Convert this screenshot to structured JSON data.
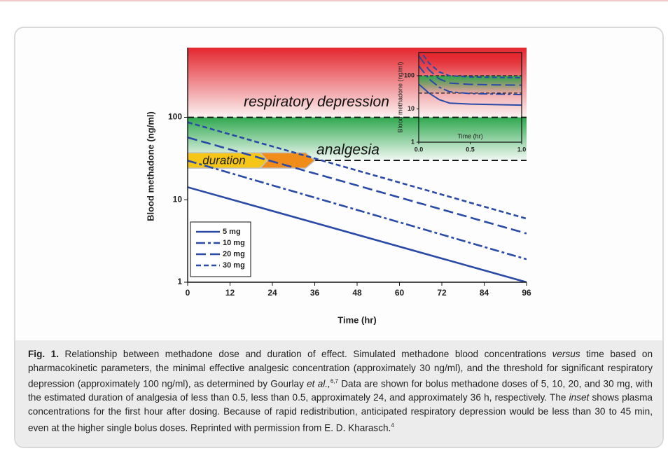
{
  "chart_data": [
    {
      "type": "line",
      "x": [
        0,
        96
      ],
      "series": [
        {
          "name": "5 mg",
          "color": "#2b4aa6",
          "dash": "solid",
          "values": [
            14.2,
            1
          ]
        },
        {
          "name": "10 mg",
          "color": "#2b4aa6",
          "dash": "dashdot",
          "values": [
            29.8,
            1.9
          ]
        },
        {
          "name": "20 mg",
          "color": "#2b4aa6",
          "dash": "dashed",
          "values": [
            57,
            3.9
          ]
        },
        {
          "name": "30 mg",
          "color": "#2b4aa6",
          "dash": "dotted",
          "values": [
            87,
            5.9
          ]
        }
      ],
      "xlim": [
        0,
        96
      ],
      "xticks": [
        0,
        12,
        24,
        36,
        48,
        60,
        72,
        84,
        96
      ],
      "ylim": [
        1,
        700
      ],
      "yticks": [
        1,
        10,
        100
      ],
      "log_y": true,
      "xlabel": "Time (hr)",
      "ylabel": "Blood methadone (ng/ml)",
      "zones": [
        {
          "name": "respiratory depression",
          "min": 100,
          "color": "#e3262e"
        },
        {
          "name": "analgesia",
          "min": 30,
          "color": "#2fa84f"
        }
      ],
      "arrows": [
        {
          "label": "duration",
          "from": 0,
          "to": 23,
          "color": "#f5c518"
        },
        {
          "from": 20.6,
          "to": 36,
          "color": "#f08c1a"
        }
      ],
      "legend": "lower left"
    },
    {
      "type": "line",
      "x": [
        0,
        0.1,
        0.2,
        0.3,
        0.5,
        0.75,
        1.0
      ],
      "series": [
        {
          "color": "#2b4aa6",
          "dash": "solid",
          "values": [
            56,
            30,
            19,
            15,
            14,
            13.5,
            13
          ]
        },
        {
          "color": "#2b4aa6",
          "dash": "dashdot",
          "values": [
            200,
            80,
            45,
            33,
            29,
            28,
            27
          ]
        },
        {
          "color": "#2b4aa6",
          "dash": "dashed",
          "values": [
            400,
            150,
            80,
            60,
            55,
            53,
            52
          ]
        },
        {
          "color": "#2b4aa6",
          "dash": "dotted",
          "values": [
            650,
            240,
            130,
            100,
            92,
            89,
            87
          ]
        }
      ],
      "xlim": [
        0,
        1
      ],
      "xticks": [
        {
          "value": 0,
          "label": "0.0"
        },
        0.5,
        {
          "value": 1,
          "label": "1.0"
        }
      ],
      "ylim": [
        1,
        500
      ],
      "yticks": [
        1,
        10,
        100
      ],
      "log_y": true,
      "xlabel": "Time (hr)",
      "ylabel": "Blood methadone (ng/ml)",
      "zones": [
        {
          "min": 100,
          "color": "#e3262e"
        },
        {
          "min": 30,
          "color": "#2fa84f"
        }
      ]
    }
  ],
  "caption": [
    "Fig. 1.",
    " Relationship between methadone dose and duration of effect. Simulated methadone blood concentrations ",
    "versus",
    " time based on pharmacokinetic parameters, the minimal effective analgesic concentration (approximately 30 ng/ml), and the threshold for significant respiratory depression (approximately 100 ng/ml), as determined by Gourlay ",
    "et al.,",
    "6,7",
    " Data are shown for bolus methadone doses of 5, 10, 20, and 30 mg, with the estimated duration of analgesia of less than 0.5, less than 0.5, approximately 24, and approximately 36 h, respectively. The ",
    "inset",
    " shows plasma concentrations for the first hour after dosing. Because of rapid redistribution, anticipated respiratory depression would be less than 30 to 45 min, even at the higher single bolus doses. Reprinted with permission from E. D. Kharasch.",
    "4"
  ]
}
